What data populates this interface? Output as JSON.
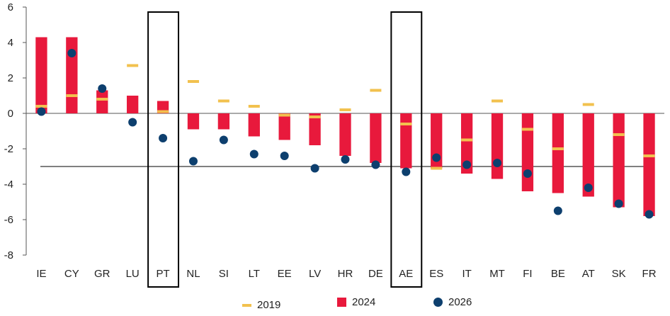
{
  "chart_data": {
    "type": "bar",
    "categories": [
      "IE",
      "CY",
      "GR",
      "LU",
      "PT",
      "NL",
      "SI",
      "LT",
      "EE",
      "LV",
      "HR",
      "DE",
      "AE",
      "ES",
      "IT",
      "MT",
      "FI",
      "BE",
      "AT",
      "SK",
      "FR"
    ],
    "series": [
      {
        "name": "2024",
        "kind": "bar",
        "color": "#e8193c",
        "values": [
          4.3,
          4.3,
          1.3,
          1.0,
          0.7,
          -0.9,
          -0.9,
          -1.3,
          -1.5,
          -1.8,
          -2.4,
          -2.8,
          -3.1,
          -3.1,
          -3.4,
          -3.7,
          -4.4,
          -4.5,
          -4.7,
          -5.3,
          -5.8
        ]
      },
      {
        "name": "2019",
        "kind": "dash",
        "color": "#f2c14e",
        "values": [
          0.4,
          1.0,
          0.8,
          2.7,
          0.1,
          1.8,
          0.7,
          0.4,
          -0.1,
          -0.2,
          0.2,
          1.3,
          -0.6,
          -3.1,
          -1.5,
          0.7,
          -0.9,
          -2.0,
          0.5,
          -1.2,
          -2.4
        ]
      },
      {
        "name": "2026",
        "kind": "dot",
        "color": "#0d3f6e",
        "values": [
          0.1,
          3.4,
          1.4,
          -0.5,
          -1.4,
          -2.7,
          -1.5,
          -2.3,
          -2.4,
          -3.1,
          -2.6,
          -2.9,
          -3.3,
          -2.5,
          -2.9,
          -2.8,
          -3.4,
          -5.5,
          -4.2,
          -5.1,
          -5.7
        ]
      }
    ],
    "ylim": [
      -8,
      6
    ],
    "yticks": [
      6,
      4,
      2,
      0,
      -2,
      -4,
      -6,
      -8
    ],
    "reference_line": -3,
    "highlighted": [
      "PT",
      "AE"
    ],
    "legend_order": [
      "2019",
      "2024",
      "2026"
    ],
    "legend_position": "bottom",
    "title": "",
    "xlabel": "",
    "ylabel": ""
  }
}
